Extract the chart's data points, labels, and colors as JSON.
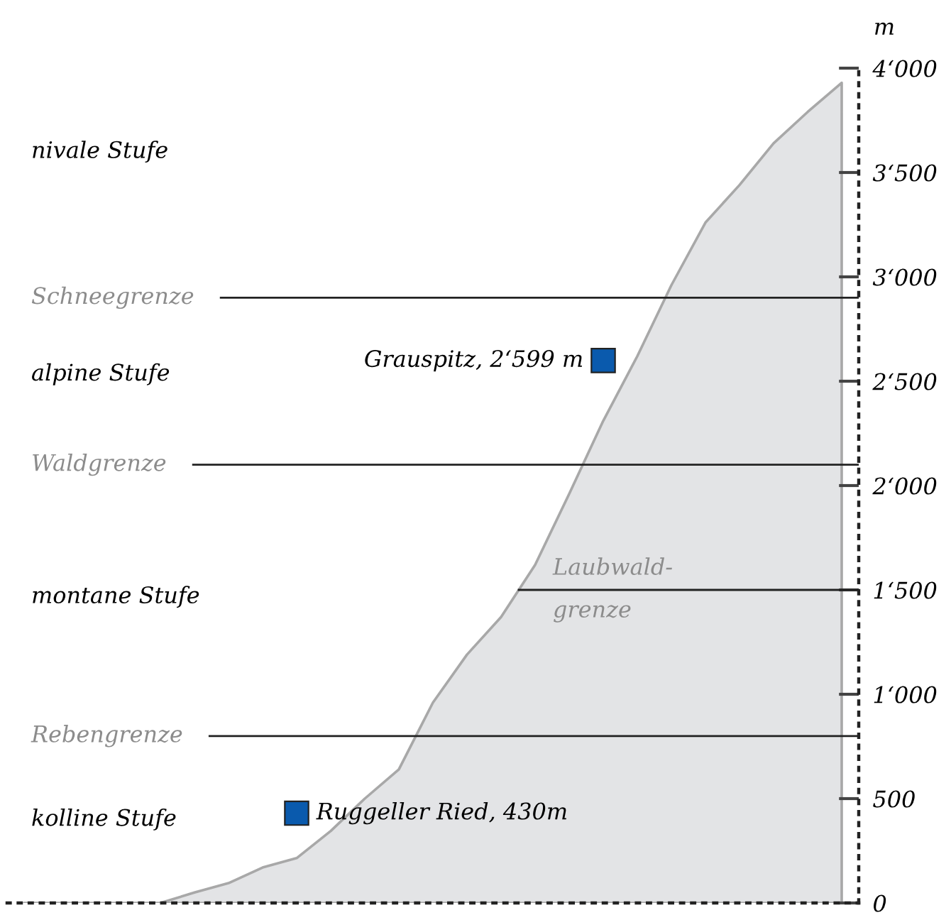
{
  "chart_data": {
    "type": "area",
    "ylabel": "m",
    "categories": [
      null,
      null,
      null,
      null,
      null,
      null,
      null,
      null,
      null,
      null,
      null,
      null,
      null,
      null,
      null,
      null,
      null,
      null,
      null,
      null,
      null,
      null,
      null,
      null,
      null
    ],
    "series": [
      {
        "color": "#e3e4e6",
        "values": [
          0,
          0,
          0,
          0,
          0,
          50,
          95,
          170,
          215,
          345,
          500,
          640,
          960,
          1190,
          1370,
          1620,
          1960,
          2310,
          2620,
          2960,
          3260,
          3440,
          3640,
          3790,
          3930
        ]
      },
      {
        "type": "scatter",
        "color": "#0a5aad",
        "marker": "square",
        "values": [
          null,
          null,
          null,
          null,
          null,
          null,
          null,
          null,
          430,
          null,
          null,
          null,
          null,
          null,
          null,
          null,
          null,
          2599,
          null,
          null,
          null,
          null,
          null,
          null,
          null
        ],
        "value_labels": [
          null,
          null,
          null,
          null,
          null,
          null,
          null,
          null,
          "Ruggeller Ried, 430m",
          null,
          null,
          null,
          null,
          null,
          null,
          null,
          null,
          "Grauspitz, 2‘599 m",
          null,
          null,
          null,
          null,
          null,
          null,
          null
        ]
      }
    ],
    "ylim": [
      0,
      4000
    ],
    "yticks": [
      0,
      500,
      {
        "value": 1000,
        "label": "1‘000"
      },
      {
        "value": 1500,
        "label": "1‘500"
      },
      {
        "value": 2000,
        "label": "2‘000"
      },
      {
        "value": 2500,
        "label": "2‘500"
      },
      {
        "value": 3000,
        "label": "3‘000"
      },
      {
        "value": 3500,
        "label": "3‘500"
      },
      {
        "value": 4000,
        "label": "4‘000"
      }
    ],
    "ref_lines": [
      {
        "axis": "y",
        "value": 2900,
        "label": "Schneegrenze"
      },
      {
        "axis": "y",
        "value": 2100,
        "label": "Waldgrenze"
      },
      {
        "axis": "y",
        "value": 1500,
        "label": "Laubwald-\ngrenze"
      },
      {
        "axis": "y",
        "value": 800,
        "label": "Rebengrenze"
      }
    ],
    "annotations": [
      "nivale Stufe",
      "alpine Stufe",
      "montane Stufe",
      "kolline Stufe"
    ],
    "grid": false
  }
}
